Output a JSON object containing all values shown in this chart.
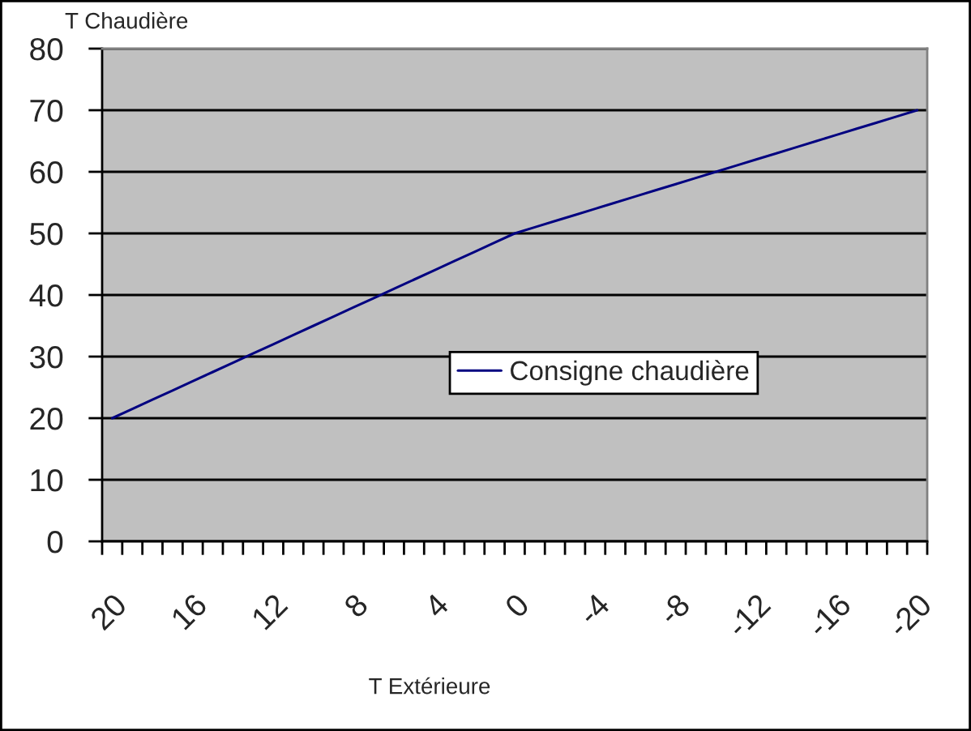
{
  "chart_data": {
    "type": "line",
    "xlabel": "T Extérieure",
    "ylabel": "T Chaudière",
    "categories": [
      "20",
      null,
      null,
      null,
      "16",
      null,
      null,
      null,
      "12",
      null,
      null,
      null,
      "8",
      null,
      null,
      null,
      "4",
      null,
      null,
      null,
      "0",
      null,
      null,
      null,
      "-4",
      null,
      null,
      null,
      "-8",
      null,
      null,
      null,
      "-12",
      null,
      null,
      null,
      "-16",
      null,
      null,
      null,
      "-20"
    ],
    "series": [
      {
        "name": "Consigne chaudière",
        "color": "#000080",
        "values": [
          20,
          21.5,
          23,
          24.5,
          26,
          27.5,
          29,
          30.5,
          32,
          33.5,
          35,
          36.5,
          38,
          39.5,
          41,
          42.5,
          44,
          45.5,
          47,
          48.5,
          50,
          51,
          52,
          53,
          54,
          55,
          56,
          57,
          58,
          59,
          60,
          61,
          62,
          63,
          64,
          65,
          66,
          67,
          68,
          69,
          70
        ]
      }
    ],
    "ylim": [
      0,
      80
    ],
    "yticks": [
      0,
      10,
      20,
      30,
      40,
      50,
      60,
      70,
      80
    ],
    "grid": "y",
    "legend": "center"
  }
}
